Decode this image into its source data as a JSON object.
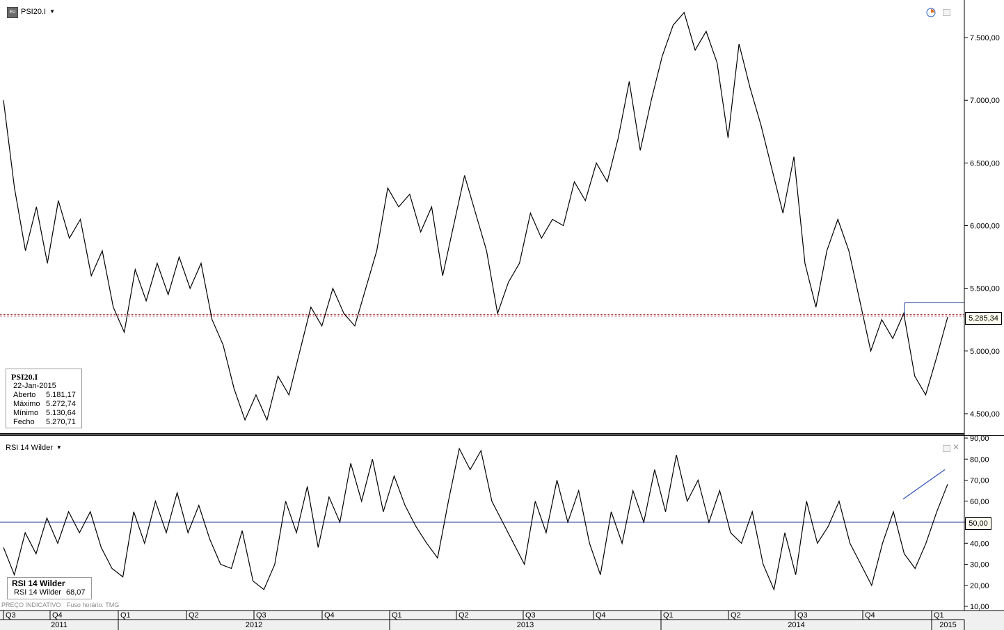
{
  "header": {
    "symbol": "PSI20.I",
    "chart_icon": "chart-type-icon",
    "caret": "▼"
  },
  "info_box": {
    "title": "PSI20.I",
    "date": "22-Jan-2015",
    "rows": [
      {
        "label": "Aberto",
        "value": "5.181,17"
      },
      {
        "label": "Máximo",
        "value": "5.272,74"
      },
      {
        "label": "Mínimo",
        "value": "5.130,64"
      },
      {
        "label": "Fecho",
        "value": "5.270,71"
      }
    ]
  },
  "rsi_panel": {
    "title": "RSI 14 Wilder",
    "box_title": "RSI 14 Wilder",
    "box_row_label": "RSI 14 Wilder",
    "box_row_value": "68,07"
  },
  "footnote": {
    "left": "PREÇO INDICATIVO",
    "right": "Fuso horário: TMG"
  },
  "colors": {
    "price_line": "#000000",
    "hline_red": "#8b0000",
    "hline_blue": "#1f3a93",
    "rsi_trend": "#3050b8"
  },
  "chart_data": [
    {
      "type": "line",
      "name": "PSI20.I",
      "ylim": [
        4350,
        7800
      ],
      "y_ticks": [
        "4.500,00",
        "5.000,00",
        "5.500,00",
        "6.000,00",
        "6.500,00",
        "7.000,00",
        "7.500,00"
      ],
      "y_tick_values": [
        4500,
        5000,
        5500,
        6000,
        6500,
        7000,
        7500
      ],
      "current_value_label": "5.285,34",
      "current_value": 5285.34,
      "resistance_value": 5385,
      "x_quarters": [
        "Q3",
        "Q4",
        "Q1",
        "Q2",
        "Q3",
        "Q4",
        "Q1",
        "Q2",
        "Q3",
        "Q4",
        "Q1",
        "Q2",
        "Q3",
        "Q4",
        "Q1"
      ],
      "x_years": [
        "2011",
        "2012",
        "2013",
        "2014",
        "2015"
      ],
      "points": [
        [
          "2011-07",
          7000
        ],
        [
          "2011-07",
          6300
        ],
        [
          "2011-08",
          5800
        ],
        [
          "2011-08",
          6150
        ],
        [
          "2011-09",
          5700
        ],
        [
          "2011-09",
          6200
        ],
        [
          "2011-10",
          5900
        ],
        [
          "2011-10",
          6050
        ],
        [
          "2011-11",
          5600
        ],
        [
          "2011-11",
          5800
        ],
        [
          "2011-12",
          5350
        ],
        [
          "2011-12",
          5150
        ],
        [
          "2012-01",
          5650
        ],
        [
          "2012-01",
          5400
        ],
        [
          "2012-02",
          5700
        ],
        [
          "2012-02",
          5450
        ],
        [
          "2012-03",
          5750
        ],
        [
          "2012-03",
          5500
        ],
        [
          "2012-04",
          5700
        ],
        [
          "2012-04",
          5250
        ],
        [
          "2012-05",
          5050
        ],
        [
          "2012-05",
          4700
        ],
        [
          "2012-06",
          4450
        ],
        [
          "2012-06",
          4650
        ],
        [
          "2012-07",
          4450
        ],
        [
          "2012-07",
          4800
        ],
        [
          "2012-08",
          4650
        ],
        [
          "2012-08",
          5000
        ],
        [
          "2012-09",
          5350
        ],
        [
          "2012-09",
          5200
        ],
        [
          "2012-10",
          5500
        ],
        [
          "2012-10",
          5300
        ],
        [
          "2012-11",
          5200
        ],
        [
          "2012-11",
          5500
        ],
        [
          "2012-12",
          5800
        ],
        [
          "2013-01",
          6300
        ],
        [
          "2013-01",
          6150
        ],
        [
          "2013-02",
          6250
        ],
        [
          "2013-02",
          5950
        ],
        [
          "2013-03",
          6150
        ],
        [
          "2013-03",
          5600
        ],
        [
          "2013-04",
          6000
        ],
        [
          "2013-04",
          6400
        ],
        [
          "2013-05",
          6100
        ],
        [
          "2013-05",
          5800
        ],
        [
          "2013-06",
          5300
        ],
        [
          "2013-06",
          5550
        ],
        [
          "2013-07",
          5700
        ],
        [
          "2013-07",
          6100
        ],
        [
          "2013-08",
          5900
        ],
        [
          "2013-08",
          6050
        ],
        [
          "2013-09",
          6000
        ],
        [
          "2013-09",
          6350
        ],
        [
          "2013-10",
          6200
        ],
        [
          "2013-10",
          6500
        ],
        [
          "2013-11",
          6350
        ],
        [
          "2013-11",
          6700
        ],
        [
          "2013-12",
          7150
        ],
        [
          "2013-12",
          6600
        ],
        [
          "2014-01",
          7000
        ],
        [
          "2014-01",
          7350
        ],
        [
          "2014-02",
          7600
        ],
        [
          "2014-02",
          7700
        ],
        [
          "2014-03",
          7400
        ],
        [
          "2014-03",
          7550
        ],
        [
          "2014-04",
          7300
        ],
        [
          "2014-04",
          6700
        ],
        [
          "2014-05",
          7450
        ],
        [
          "2014-05",
          7100
        ],
        [
          "2014-06",
          6800
        ],
        [
          "2014-06",
          6450
        ],
        [
          "2014-07",
          6100
        ],
        [
          "2014-07",
          6550
        ],
        [
          "2014-08",
          5700
        ],
        [
          "2014-08",
          5350
        ],
        [
          "2014-09",
          5800
        ],
        [
          "2014-09",
          6050
        ],
        [
          "2014-10",
          5800
        ],
        [
          "2014-10",
          5400
        ],
        [
          "2014-11",
          5000
        ],
        [
          "2014-11",
          5250
        ],
        [
          "2014-12",
          5100
        ],
        [
          "2014-12",
          5300
        ],
        [
          "2014-12",
          4800
        ],
        [
          "2015-01",
          4650
        ],
        [
          "2015-01",
          4950
        ],
        [
          "2015-01",
          5270
        ]
      ]
    },
    {
      "type": "line",
      "name": "RSI 14 Wilder",
      "ylim": [
        10,
        90
      ],
      "y_ticks": [
        "10,00",
        "20,00",
        "30,00",
        "40,00",
        "50,00",
        "60,00",
        "70,00",
        "80,00",
        "90,00"
      ],
      "y_tick_values": [
        10,
        20,
        30,
        40,
        50,
        60,
        70,
        80,
        90
      ],
      "reference_line_label": "50,00",
      "reference_value": 50,
      "current_value": 68.07,
      "points": [
        [
          "2011-07",
          38
        ],
        [
          "2011-07",
          25
        ],
        [
          "2011-08",
          45
        ],
        [
          "2011-08",
          35
        ],
        [
          "2011-09",
          52
        ],
        [
          "2011-09",
          40
        ],
        [
          "2011-10",
          55
        ],
        [
          "2011-10",
          45
        ],
        [
          "2011-11",
          55
        ],
        [
          "2011-11",
          38
        ],
        [
          "2011-12",
          28
        ],
        [
          "2011-12",
          24
        ],
        [
          "2012-01",
          55
        ],
        [
          "2012-01",
          40
        ],
        [
          "2012-02",
          60
        ],
        [
          "2012-02",
          45
        ],
        [
          "2012-03",
          64
        ],
        [
          "2012-03",
          45
        ],
        [
          "2012-04",
          58
        ],
        [
          "2012-04",
          42
        ],
        [
          "2012-05",
          30
        ],
        [
          "2012-05",
          28
        ],
        [
          "2012-06",
          46
        ],
        [
          "2012-06",
          22
        ],
        [
          "2012-07",
          18
        ],
        [
          "2012-07",
          30
        ],
        [
          "2012-08",
          60
        ],
        [
          "2012-08",
          45
        ],
        [
          "2012-09",
          67
        ],
        [
          "2012-09",
          38
        ],
        [
          "2012-10",
          62
        ],
        [
          "2012-10",
          50
        ],
        [
          "2012-11",
          78
        ],
        [
          "2012-11",
          60
        ],
        [
          "2012-12",
          80
        ],
        [
          "2012-12",
          55
        ],
        [
          "2013-01",
          72
        ],
        [
          "2013-01",
          58
        ],
        [
          "2013-02",
          48
        ],
        [
          "2013-02",
          40
        ],
        [
          "2013-03",
          33
        ],
        [
          "2013-03",
          60
        ],
        [
          "2013-04",
          85
        ],
        [
          "2013-04",
          75
        ],
        [
          "2013-05",
          84
        ],
        [
          "2013-05",
          60
        ],
        [
          "2013-06",
          50
        ],
        [
          "2013-06",
          40
        ],
        [
          "2013-07",
          30
        ],
        [
          "2013-07",
          60
        ],
        [
          "2013-08",
          45
        ],
        [
          "2013-08",
          70
        ],
        [
          "2013-09",
          50
        ],
        [
          "2013-09",
          65
        ],
        [
          "2013-10",
          40
        ],
        [
          "2013-10",
          25
        ],
        [
          "2013-11",
          55
        ],
        [
          "2013-11",
          40
        ],
        [
          "2013-12",
          65
        ],
        [
          "2013-12",
          50
        ],
        [
          "2014-01",
          75
        ],
        [
          "2014-01",
          55
        ],
        [
          "2014-02",
          82
        ],
        [
          "2014-02",
          60
        ],
        [
          "2014-03",
          70
        ],
        [
          "2014-03",
          50
        ],
        [
          "2014-04",
          65
        ],
        [
          "2014-04",
          45
        ],
        [
          "2014-05",
          40
        ],
        [
          "2014-05",
          55
        ],
        [
          "2014-06",
          30
        ],
        [
          "2014-06",
          18
        ],
        [
          "2014-07",
          45
        ],
        [
          "2014-07",
          25
        ],
        [
          "2014-08",
          60
        ],
        [
          "2014-08",
          40
        ],
        [
          "2014-09",
          48
        ],
        [
          "2014-09",
          60
        ],
        [
          "2014-10",
          40
        ],
        [
          "2014-10",
          30
        ],
        [
          "2014-11",
          20
        ],
        [
          "2014-11",
          40
        ],
        [
          "2014-12",
          55
        ],
        [
          "2014-12",
          35
        ],
        [
          "2014-12",
          28
        ],
        [
          "2015-01",
          40
        ],
        [
          "2015-01",
          55
        ],
        [
          "2015-01",
          68.07
        ]
      ]
    }
  ]
}
